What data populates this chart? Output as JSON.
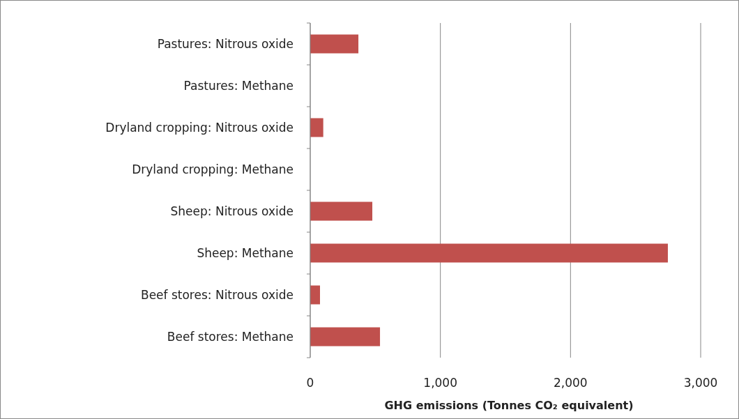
{
  "chart_data": {
    "type": "bar",
    "orientation": "horizontal",
    "xlabel": "GHG emissions (Tonnes CO₂ equivalent)",
    "categories": [
      "Pastures: Nitrous oxide",
      "Pastures: Methane",
      "Dryland cropping: Nitrous oxide",
      "Dryland cropping: Methane",
      "Sheep: Nitrous oxide",
      "Sheep: Methane",
      "Beef stores: Nitrous oxide",
      "Beef stores: Methane"
    ],
    "values": [
      370,
      0,
      100,
      0,
      477,
      2748,
      75,
      536
    ],
    "color": "#c0504d",
    "xlim": [
      0,
      3000
    ],
    "xticks": [
      {
        "value": 0,
        "label": "0"
      },
      {
        "value": 1000,
        "label": "1,000"
      },
      {
        "value": 2000,
        "label": "2,000"
      },
      {
        "value": 3000,
        "label": "3,000"
      }
    ],
    "grid": "x"
  }
}
